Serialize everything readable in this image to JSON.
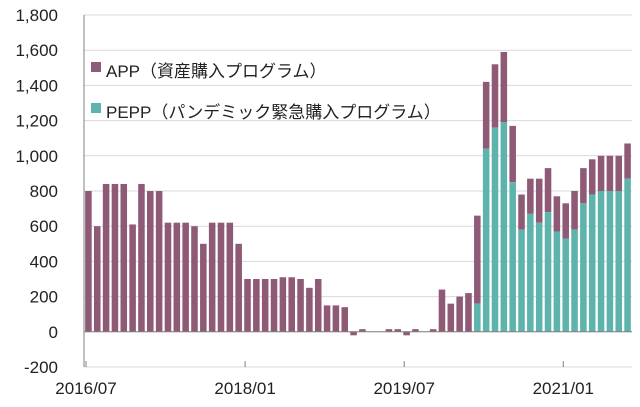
{
  "chart_data": {
    "type": "bar",
    "stacked": true,
    "title": "",
    "xlabel": "",
    "ylabel": "",
    "ylim": [
      -200,
      1800
    ],
    "yticks": [
      -200,
      0,
      200,
      400,
      600,
      800,
      1000,
      1200,
      1400,
      1600,
      1800
    ],
    "ytick_labels": [
      "-200",
      "0",
      "200",
      "400",
      "600",
      "800",
      "1,000",
      "1,200",
      "1,400",
      "1,600",
      "1,800"
    ],
    "x_ticks": [
      {
        "index": 0,
        "label": "2016/07"
      },
      {
        "index": 18,
        "label": "2018/01"
      },
      {
        "index": 36,
        "label": "2019/07"
      },
      {
        "index": 54,
        "label": "2021/01"
      }
    ],
    "grid": true,
    "legend_position": "top-left",
    "colors": {
      "app": "#8f5a76",
      "pepp": "#5fb3ad"
    },
    "legend": [
      {
        "key": "app",
        "label": "APP（資産購入プログラム）"
      },
      {
        "key": "pepp",
        "label": "PEPP（パンデミック緊急購入プログラム）"
      }
    ],
    "series": [
      {
        "name": "APP（資産購入プログラム）",
        "key": "app",
        "values": [
          800,
          600,
          840,
          840,
          840,
          610,
          840,
          800,
          800,
          620,
          620,
          620,
          600,
          500,
          620,
          620,
          620,
          500,
          300,
          300,
          300,
          300,
          310,
          310,
          300,
          250,
          300,
          150,
          150,
          140,
          -20,
          15,
          0,
          0,
          15,
          15,
          -20,
          15,
          0,
          15,
          240,
          160,
          200,
          220,
          500,
          380,
          360,
          400,
          320,
          200,
          200,
          250,
          250,
          200,
          200,
          220,
          200,
          200,
          200,
          200,
          200,
          200
        ]
      },
      {
        "name": "PEPP（パンデミック緊急購入プログラム）",
        "key": "pepp",
        "values": [
          0,
          0,
          0,
          0,
          0,
          0,
          0,
          0,
          0,
          0,
          0,
          0,
          0,
          0,
          0,
          0,
          0,
          0,
          0,
          0,
          0,
          0,
          0,
          0,
          0,
          0,
          0,
          0,
          0,
          0,
          0,
          0,
          0,
          0,
          0,
          0,
          0,
          0,
          0,
          0,
          0,
          0,
          0,
          0,
          160,
          1040,
          1160,
          1190,
          850,
          580,
          670,
          620,
          680,
          570,
          530,
          580,
          730,
          780,
          800,
          800,
          800,
          870
        ]
      }
    ]
  }
}
